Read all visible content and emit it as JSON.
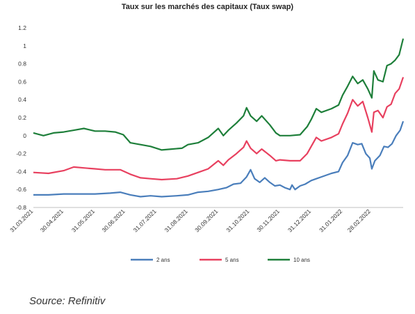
{
  "colors": {
    "s2": "#4a7ebb",
    "s5": "#e8405f",
    "s10": "#1e7f3a",
    "axis": "#bfbfbf"
  },
  "source": "Source: Refinitiv",
  "chart_data": {
    "type": "line",
    "title": "Taux sur les marchés des capitaux (Taux swap)",
    "xlabel": "",
    "ylabel": "",
    "ylim": [
      -0.8,
      1.2
    ],
    "yticks": [
      "1.2",
      "1",
      "0.8",
      "0.6",
      "0.4",
      "0.2",
      "0",
      "-0.2",
      "-0.4",
      "-0.6",
      "-0.8"
    ],
    "xticks": [
      "31.03.2021",
      "30.04.2021",
      "31.05.2021",
      "30.06.2021",
      "31.07.2021",
      "31.08.2021",
      "30.09.2021",
      "31.10.2021",
      "30.11.2021",
      "31.12.2021",
      "31.01.2022",
      "28.02.2022"
    ],
    "x_range": [
      "2021-03-31",
      "2022-04-01"
    ],
    "grid": false,
    "legend_position": "bottom",
    "series": [
      {
        "name": "2 ans",
        "color": "#4a7ebb",
        "points": [
          [
            "2021-03-31",
            -0.66
          ],
          [
            "2021-04-15",
            -0.66
          ],
          [
            "2021-04-30",
            -0.65
          ],
          [
            "2021-05-15",
            -0.65
          ],
          [
            "2021-05-31",
            -0.65
          ],
          [
            "2021-06-15",
            -0.64
          ],
          [
            "2021-06-25",
            -0.63
          ],
          [
            "2021-07-05",
            -0.66
          ],
          [
            "2021-07-15",
            -0.68
          ],
          [
            "2021-07-25",
            -0.67
          ],
          [
            "2021-08-05",
            -0.68
          ],
          [
            "2021-08-20",
            -0.67
          ],
          [
            "2021-08-31",
            -0.66
          ],
          [
            "2021-09-10",
            -0.63
          ],
          [
            "2021-09-20",
            -0.62
          ],
          [
            "2021-09-30",
            -0.6
          ],
          [
            "2021-10-08",
            -0.58
          ],
          [
            "2021-10-15",
            -0.54
          ],
          [
            "2021-10-22",
            -0.53
          ],
          [
            "2021-10-28",
            -0.46
          ],
          [
            "2021-11-01",
            -0.38
          ],
          [
            "2021-11-05",
            -0.48
          ],
          [
            "2021-11-10",
            -0.52
          ],
          [
            "2021-11-15",
            -0.47
          ],
          [
            "2021-11-20",
            -0.52
          ],
          [
            "2021-11-25",
            -0.56
          ],
          [
            "2021-11-30",
            -0.55
          ],
          [
            "2021-12-05",
            -0.58
          ],
          [
            "2021-12-10",
            -0.6
          ],
          [
            "2021-12-12",
            -0.55
          ],
          [
            "2021-12-15",
            -0.6
          ],
          [
            "2021-12-20",
            -0.56
          ],
          [
            "2021-12-25",
            -0.54
          ],
          [
            "2021-12-31",
            -0.5
          ],
          [
            "2022-01-10",
            -0.46
          ],
          [
            "2022-01-20",
            -0.42
          ],
          [
            "2022-01-27",
            -0.4
          ],
          [
            "2022-01-31",
            -0.3
          ],
          [
            "2022-02-05",
            -0.22
          ],
          [
            "2022-02-10",
            -0.08
          ],
          [
            "2022-02-15",
            -0.1
          ],
          [
            "2022-02-19",
            -0.09
          ],
          [
            "2022-02-23",
            -0.2
          ],
          [
            "2022-02-27",
            -0.25
          ],
          [
            "2022-03-01",
            -0.37
          ],
          [
            "2022-03-04",
            -0.28
          ],
          [
            "2022-03-09",
            -0.22
          ],
          [
            "2022-03-13",
            -0.12
          ],
          [
            "2022-03-17",
            -0.13
          ],
          [
            "2022-03-21",
            -0.09
          ],
          [
            "2022-03-25",
            0.0
          ],
          [
            "2022-03-29",
            0.06
          ],
          [
            "2022-04-01",
            0.16
          ]
        ]
      },
      {
        "name": "5 ans",
        "color": "#e8405f",
        "points": [
          [
            "2021-03-31",
            -0.41
          ],
          [
            "2021-04-15",
            -0.42
          ],
          [
            "2021-04-30",
            -0.39
          ],
          [
            "2021-05-10",
            -0.35
          ],
          [
            "2021-05-20",
            -0.36
          ],
          [
            "2021-05-31",
            -0.37
          ],
          [
            "2021-06-10",
            -0.38
          ],
          [
            "2021-06-25",
            -0.38
          ],
          [
            "2021-07-05",
            -0.43
          ],
          [
            "2021-07-15",
            -0.47
          ],
          [
            "2021-07-25",
            -0.48
          ],
          [
            "2021-08-05",
            -0.49
          ],
          [
            "2021-08-20",
            -0.48
          ],
          [
            "2021-08-31",
            -0.45
          ],
          [
            "2021-09-10",
            -0.41
          ],
          [
            "2021-09-20",
            -0.37
          ],
          [
            "2021-09-30",
            -0.28
          ],
          [
            "2021-10-05",
            -0.33
          ],
          [
            "2021-10-10",
            -0.27
          ],
          [
            "2021-10-18",
            -0.2
          ],
          [
            "2021-10-25",
            -0.13
          ],
          [
            "2021-10-28",
            -0.06
          ],
          [
            "2021-11-01",
            -0.14
          ],
          [
            "2021-11-07",
            -0.2
          ],
          [
            "2021-11-12",
            -0.15
          ],
          [
            "2021-11-20",
            -0.22
          ],
          [
            "2021-11-26",
            -0.28
          ],
          [
            "2021-11-30",
            -0.27
          ],
          [
            "2021-12-10",
            -0.28
          ],
          [
            "2021-12-20",
            -0.28
          ],
          [
            "2021-12-27",
            -0.2
          ],
          [
            "2021-12-31",
            -0.12
          ],
          [
            "2022-01-05",
            -0.02
          ],
          [
            "2022-01-10",
            -0.06
          ],
          [
            "2022-01-20",
            -0.02
          ],
          [
            "2022-01-27",
            0.02
          ],
          [
            "2022-01-31",
            0.13
          ],
          [
            "2022-02-05",
            0.25
          ],
          [
            "2022-02-10",
            0.4
          ],
          [
            "2022-02-15",
            0.33
          ],
          [
            "2022-02-20",
            0.38
          ],
          [
            "2022-02-25",
            0.2
          ],
          [
            "2022-03-01",
            0.04
          ],
          [
            "2022-03-03",
            0.26
          ],
          [
            "2022-03-07",
            0.28
          ],
          [
            "2022-03-12",
            0.2
          ],
          [
            "2022-03-16",
            0.32
          ],
          [
            "2022-03-20",
            0.35
          ],
          [
            "2022-03-24",
            0.47
          ],
          [
            "2022-03-28",
            0.52
          ],
          [
            "2022-04-01",
            0.65
          ]
        ]
      },
      {
        "name": "10 ans",
        "color": "#1e7f3a",
        "points": [
          [
            "2021-03-31",
            0.03
          ],
          [
            "2021-04-10",
            0.0
          ],
          [
            "2021-04-20",
            0.03
          ],
          [
            "2021-04-30",
            0.04
          ],
          [
            "2021-05-10",
            0.06
          ],
          [
            "2021-05-20",
            0.08
          ],
          [
            "2021-05-31",
            0.05
          ],
          [
            "2021-06-10",
            0.05
          ],
          [
            "2021-06-20",
            0.04
          ],
          [
            "2021-06-28",
            0.01
          ],
          [
            "2021-07-05",
            -0.08
          ],
          [
            "2021-07-15",
            -0.1
          ],
          [
            "2021-07-25",
            -0.12
          ],
          [
            "2021-08-05",
            -0.16
          ],
          [
            "2021-08-15",
            -0.15
          ],
          [
            "2021-08-25",
            -0.14
          ],
          [
            "2021-08-31",
            -0.1
          ],
          [
            "2021-09-10",
            -0.08
          ],
          [
            "2021-09-20",
            -0.02
          ],
          [
            "2021-09-30",
            0.08
          ],
          [
            "2021-10-05",
            0.0
          ],
          [
            "2021-10-10",
            0.06
          ],
          [
            "2021-10-18",
            0.14
          ],
          [
            "2021-10-25",
            0.22
          ],
          [
            "2021-10-28",
            0.31
          ],
          [
            "2021-11-01",
            0.22
          ],
          [
            "2021-11-07",
            0.16
          ],
          [
            "2021-11-12",
            0.22
          ],
          [
            "2021-11-20",
            0.12
          ],
          [
            "2021-11-26",
            0.03
          ],
          [
            "2021-11-30",
            0.0
          ],
          [
            "2021-12-10",
            0.0
          ],
          [
            "2021-12-20",
            0.01
          ],
          [
            "2021-12-27",
            0.1
          ],
          [
            "2021-12-31",
            0.18
          ],
          [
            "2022-01-05",
            0.3
          ],
          [
            "2022-01-10",
            0.26
          ],
          [
            "2022-01-20",
            0.3
          ],
          [
            "2022-01-27",
            0.34
          ],
          [
            "2022-01-31",
            0.45
          ],
          [
            "2022-02-05",
            0.55
          ],
          [
            "2022-02-10",
            0.66
          ],
          [
            "2022-02-15",
            0.58
          ],
          [
            "2022-02-20",
            0.62
          ],
          [
            "2022-02-25",
            0.52
          ],
          [
            "2022-03-01",
            0.42
          ],
          [
            "2022-03-03",
            0.72
          ],
          [
            "2022-03-07",
            0.62
          ],
          [
            "2022-03-12",
            0.6
          ],
          [
            "2022-03-16",
            0.78
          ],
          [
            "2022-03-20",
            0.8
          ],
          [
            "2022-03-24",
            0.84
          ],
          [
            "2022-03-28",
            0.9
          ],
          [
            "2022-04-01",
            1.08
          ]
        ]
      }
    ]
  }
}
